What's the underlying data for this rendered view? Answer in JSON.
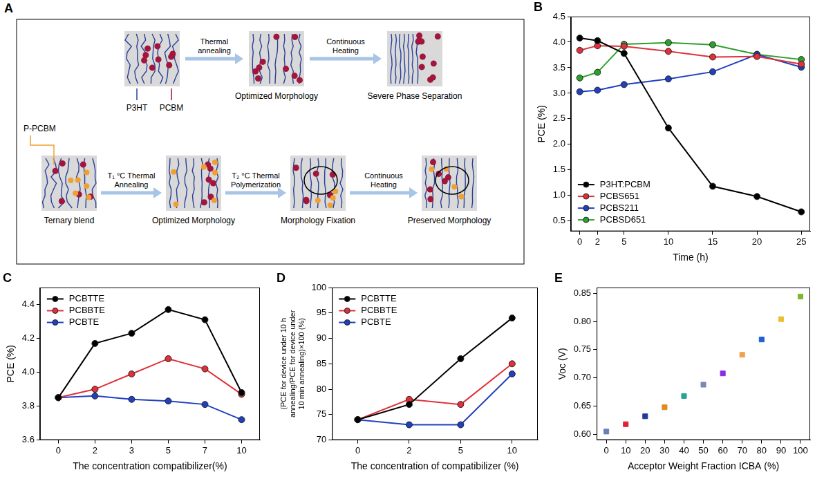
{
  "panel_labels": [
    "A",
    "B",
    "C",
    "D",
    "E"
  ],
  "diagram": {
    "component_labels": [
      "P3HT",
      "PCBM",
      "P-PCBM"
    ],
    "top_steps": [
      "Thermal annealing",
      "Continuous Heating"
    ],
    "top_states": [
      "Optimized Morphology",
      "Severe Phase Separation"
    ],
    "bottom_steps": [
      "T₁ °C Thermal Annealing",
      "T₂ °C Thermal Polymerization",
      "Continuous Heating"
    ],
    "bottom_states": [
      "Ternary blend",
      "Optimized Morphology",
      "Morphology Fixation",
      "Preserved Morphology"
    ]
  },
  "chart_data": [
    {
      "type": "line",
      "xlabel": "Time (h)",
      "ylabel": "PCE (%)",
      "x": [
        0,
        2,
        5,
        10,
        15,
        20,
        25
      ],
      "xlim": [
        -1,
        26
      ],
      "xticks": [
        0,
        2,
        5,
        10,
        15,
        20,
        25
      ],
      "ylim": [
        0.3,
        4.5
      ],
      "yticks": [
        0.5,
        {
          "value": 1,
          "label": "1.0"
        },
        1.5,
        {
          "value": 2,
          "label": "2.0"
        },
        2.5,
        {
          "value": 3,
          "label": "3.0"
        },
        3.5,
        {
          "value": 4,
          "label": "4.0"
        },
        4.5
      ],
      "grid": false,
      "legend": "lower left",
      "marker": "circle",
      "series": [
        {
          "name": "P3HT:PCBM",
          "color": "#000000",
          "values": [
            4.08,
            4.03,
            3.78,
            2.32,
            1.18,
            0.98,
            0.68
          ]
        },
        {
          "name": "PCBS651",
          "color": "#e0303a",
          "values": [
            3.84,
            3.93,
            3.92,
            3.82,
            3.71,
            3.72,
            3.57
          ]
        },
        {
          "name": "PCBS211",
          "color": "#2040c0",
          "values": [
            3.03,
            3.06,
            3.17,
            3.28,
            3.42,
            3.76,
            3.51
          ]
        },
        {
          "name": "PCBSD651",
          "color": "#2ca02c",
          "values": [
            3.3,
            3.41,
            3.96,
            3.99,
            3.95,
            3.76,
            3.66
          ]
        }
      ]
    },
    {
      "type": "line",
      "xlabel": "The concentration compatibilizer(%)",
      "ylabel": "PCE (%)",
      "categories": [
        "0",
        "2",
        "3",
        "5",
        "7",
        "10"
      ],
      "ylim": [
        3.6,
        4.5
      ],
      "yticks": [
        3.6,
        3.8,
        {
          "value": 4,
          "label": "4.0"
        },
        4.2,
        4.4
      ],
      "grid": false,
      "legend": "upper left",
      "marker": "circle",
      "series": [
        {
          "name": "PCBTTE",
          "color": "#000000",
          "values": [
            3.85,
            4.17,
            4.23,
            4.37,
            4.31,
            3.88
          ]
        },
        {
          "name": "PCBBTE",
          "color": "#e0303a",
          "values": [
            3.85,
            3.9,
            3.99,
            4.08,
            4.02,
            3.87
          ]
        },
        {
          "name": "PCBTE",
          "color": "#2040c0",
          "values": [
            3.85,
            3.86,
            3.84,
            3.83,
            3.81,
            3.72
          ]
        }
      ]
    },
    {
      "type": "line",
      "xlabel": "The concentration of compatibilizer (%)",
      "ylabel": "(PCE for device under 10 h annealing/PCE for device under 10 min annealing)×100 (%)",
      "categories": [
        "0",
        "2",
        "5",
        "10"
      ],
      "ylim": [
        70,
        100
      ],
      "yticks": [
        70,
        75,
        80,
        85,
        90,
        95,
        100
      ],
      "grid": false,
      "legend": "upper left",
      "marker": "circle",
      "series": [
        {
          "name": "PCBTTE",
          "color": "#000000",
          "values": [
            74,
            77,
            86,
            94
          ]
        },
        {
          "name": "PCBBTE",
          "color": "#e0303a",
          "values": [
            74,
            78,
            77,
            85
          ]
        },
        {
          "name": "PCBTE",
          "color": "#2040c0",
          "values": [
            74,
            73,
            73,
            83
          ]
        }
      ]
    },
    {
      "type": "scatter",
      "xlabel": "Acceptor Weight Fraction ICBA (%)",
      "ylabel": "Voc (V)",
      "x": [
        0,
        10,
        20,
        30,
        40,
        50,
        60,
        70,
        80,
        90,
        100
      ],
      "values": [
        0.605,
        0.618,
        0.632,
        0.648,
        0.668,
        0.688,
        0.708,
        0.741,
        0.768,
        0.804,
        0.844
      ],
      "colors": [
        "#6a7fb5",
        "#e0203a",
        "#1f3b9a",
        "#e08a20",
        "#2aa198",
        "#7a88b8",
        "#8a2be2",
        "#f0a050",
        "#2060d0",
        "#e8c030",
        "#7cb82f"
      ],
      "xlim": [
        -5,
        105
      ],
      "xticks": [
        0,
        10,
        20,
        30,
        40,
        50,
        60,
        70,
        80,
        90,
        100
      ],
      "ylim": [
        0.59,
        0.86
      ],
      "yticks": [
        {
          "value": 0.6,
          "label": "0.60"
        },
        0.65,
        {
          "value": 0.7,
          "label": "0.70"
        },
        0.75,
        {
          "value": 0.8,
          "label": "0.80"
        },
        0.85
      ],
      "grid": false,
      "marker": "square"
    }
  ]
}
